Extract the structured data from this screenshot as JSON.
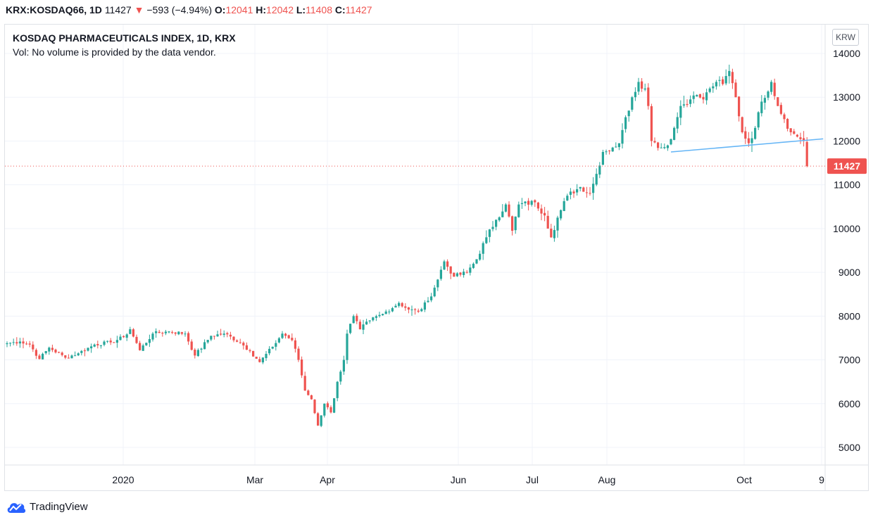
{
  "header": {
    "symbol": "KRX:KOSDAQ66, 1D",
    "last": "11427",
    "arrow": "▼",
    "change": "−593 (−4.94%)",
    "o_label": "O:",
    "o": "12041",
    "h_label": "H:",
    "h": "12042",
    "l_label": "L:",
    "l": "11408",
    "c_label": "C:",
    "c": "11427"
  },
  "legend": {
    "title": "KOSDAQ PHARMACEUTICALS INDEX, 1D, KRX",
    "volume_note": "Vol: No volume is provided by the data vendor."
  },
  "currency": "KRW",
  "footer": {
    "brand": "TradingView"
  },
  "colors": {
    "up": "#26a69a",
    "down": "#ef5350",
    "trend": "#64b5f6",
    "grid": "#f0f3fa"
  },
  "chart_data": {
    "type": "candlestick",
    "title": "KOSDAQ PHARMACEUTICALS INDEX, 1D, KRX",
    "ylim": [
      4400,
      14400
    ],
    "y_ticks": [
      5000,
      6000,
      7000,
      8000,
      9000,
      10000,
      11000,
      12000,
      13000,
      14000
    ],
    "x_ticks": [
      "2020",
      "Mar",
      "Apr",
      "Jun",
      "Jul",
      "Aug",
      "Oct",
      "9"
    ],
    "last_price_label": "11427",
    "anchors": [
      [
        0,
        7380
      ],
      [
        4,
        7420
      ],
      [
        7,
        7350
      ],
      [
        10,
        7020
      ],
      [
        13,
        7280
      ],
      [
        18,
        7050
      ],
      [
        22,
        7150
      ],
      [
        27,
        7350
      ],
      [
        32,
        7400
      ],
      [
        36,
        7520
      ],
      [
        38,
        7700
      ],
      [
        41,
        7220
      ],
      [
        45,
        7600
      ],
      [
        50,
        7650
      ],
      [
        55,
        7600
      ],
      [
        58,
        7100
      ],
      [
        63,
        7550
      ],
      [
        67,
        7600
      ],
      [
        72,
        7400
      ],
      [
        75,
        7200
      ],
      [
        78,
        6950
      ],
      [
        82,
        7300
      ],
      [
        85,
        7600
      ],
      [
        88,
        7450
      ],
      [
        90,
        7000
      ],
      [
        92,
        6300
      ],
      [
        94,
        6100
      ],
      [
        96,
        5500
      ],
      [
        98,
        6000
      ],
      [
        100,
        5800
      ],
      [
        102,
        6500
      ],
      [
        104,
        7000
      ],
      [
        105,
        7600
      ],
      [
        107,
        8000
      ],
      [
        109,
        7700
      ],
      [
        112,
        7900
      ],
      [
        116,
        8050
      ],
      [
        121,
        8300
      ],
      [
        124,
        8150
      ],
      [
        127,
        8100
      ],
      [
        130,
        8350
      ],
      [
        132,
        8650
      ],
      [
        135,
        9250
      ],
      [
        138,
        8900
      ],
      [
        142,
        9000
      ],
      [
        145,
        9300
      ],
      [
        148,
        9800
      ],
      [
        151,
        10200
      ],
      [
        154,
        10550
      ],
      [
        156,
        9950
      ],
      [
        158,
        10550
      ],
      [
        163,
        10600
      ],
      [
        166,
        10300
      ],
      [
        168,
        9800
      ],
      [
        170,
        10250
      ],
      [
        173,
        10750
      ],
      [
        177,
        10950
      ],
      [
        180,
        10800
      ],
      [
        182,
        11250
      ],
      [
        184,
        11750
      ],
      [
        187,
        11850
      ],
      [
        189,
        11950
      ],
      [
        190,
        12250
      ],
      [
        193,
        13000
      ],
      [
        195,
        13350
      ],
      [
        197,
        13200
      ],
      [
        198,
        12800
      ],
      [
        199,
        12000
      ],
      [
        202,
        11850
      ],
      [
        204,
        11900
      ],
      [
        206,
        12300
      ],
      [
        208,
        12800
      ],
      [
        211,
        12950
      ],
      [
        213,
        13050
      ],
      [
        215,
        12950
      ],
      [
        217,
        13200
      ],
      [
        219,
        13350
      ],
      [
        221,
        13300
      ],
      [
        223,
        13600
      ],
      [
        225,
        13000
      ],
      [
        227,
        12200
      ],
      [
        229,
        11950
      ],
      [
        231,
        12300
      ],
      [
        233,
        12900
      ],
      [
        236,
        13350
      ],
      [
        238,
        12800
      ],
      [
        240,
        12500
      ],
      [
        242,
        12200
      ],
      [
        244,
        12100
      ],
      [
        246,
        12000
      ],
      [
        247,
        11427
      ]
    ],
    "trendline": [
      [
        205,
        11750
      ],
      [
        252,
        12050
      ]
    ]
  }
}
